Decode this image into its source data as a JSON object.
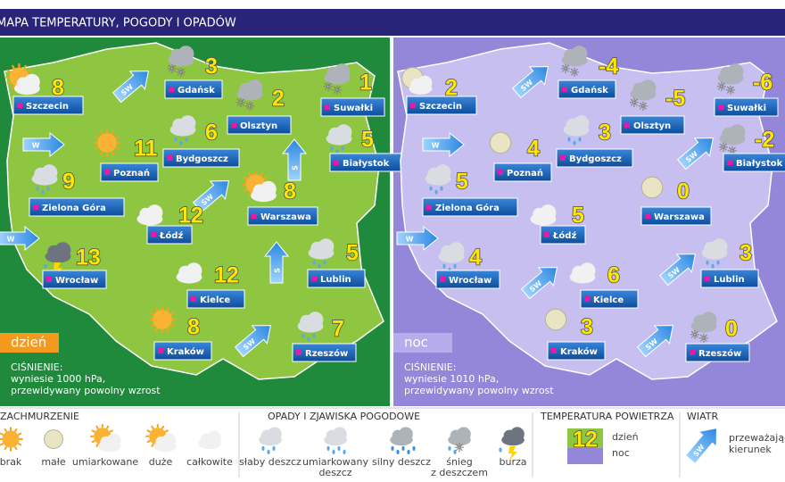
{
  "header": {
    "title": "MAPA TEMPERATURY, POGODY I OPADÓW"
  },
  "panels": [
    {
      "label": "dzień",
      "pressure": [
        "CIŚNIENIE:",
        "wyniesie 1000 hPa,",
        "przewidywany powolny wzrost"
      ],
      "cities": [
        {
          "name": "Szczecin",
          "temp": 8
        },
        {
          "name": "Gdańsk",
          "temp": 3
        },
        {
          "name": "Olsztyn",
          "temp": 2
        },
        {
          "name": "Suwałki",
          "temp": 1
        },
        {
          "name": "Białystok",
          "temp": 5
        },
        {
          "name": "Bydgoszcz",
          "temp": 6
        },
        {
          "name": "Poznań",
          "temp": 11
        },
        {
          "name": "Zielona Góra",
          "temp": 9
        },
        {
          "name": "Warszawa",
          "temp": 8
        },
        {
          "name": "Łódź",
          "temp": 12
        },
        {
          "name": "Wrocław",
          "temp": 13
        },
        {
          "name": "Kielce",
          "temp": 12
        },
        {
          "name": "Lublin",
          "temp": 5
        },
        {
          "name": "Kraków",
          "temp": 8
        },
        {
          "name": "Rzeszów",
          "temp": 7
        }
      ],
      "winds": [
        "SW",
        "W",
        "SW",
        "W",
        "S",
        "S",
        "SW"
      ]
    },
    {
      "label": "noc",
      "pressure": [
        "CIŚNIENIE:",
        "wyniesie 1010 hPa,",
        "przewidywany powolny wzrost"
      ],
      "cities": [
        {
          "name": "Szczecin",
          "temp": 2
        },
        {
          "name": "Gdańsk",
          "temp": -4
        },
        {
          "name": "Olsztyn",
          "temp": -5
        },
        {
          "name": "Suwałki",
          "temp": -6
        },
        {
          "name": "Białystok",
          "temp": -2
        },
        {
          "name": "Bydgoszcz",
          "temp": 3
        },
        {
          "name": "Poznań",
          "temp": 4
        },
        {
          "name": "Zielona Góra",
          "temp": 5
        },
        {
          "name": "Warszawa",
          "temp": 0
        },
        {
          "name": "Łódź",
          "temp": 5
        },
        {
          "name": "Wrocław",
          "temp": 4
        },
        {
          "name": "Kielce",
          "temp": 6
        },
        {
          "name": "Lublin",
          "temp": 3
        },
        {
          "name": "Kraków",
          "temp": 3
        },
        {
          "name": "Rzeszów",
          "temp": 0
        }
      ],
      "winds": [
        "SW",
        "W",
        "SW",
        "W",
        "SW",
        "SW",
        "SW"
      ]
    }
  ],
  "legend": {
    "cloud": {
      "title": "ZACHMURZENIE",
      "items": [
        "brak",
        "małe",
        "umiarkowane",
        "duże",
        "całkowite"
      ]
    },
    "precip": {
      "title": "OPADY I ZJAWISKA POGODOWE",
      "items": [
        [
          "słaby deszcz"
        ],
        [
          "umiarkowany",
          "deszcz"
        ],
        [
          "silny deszcz"
        ],
        [
          "śnieg",
          "z deszczem"
        ],
        [
          "burza"
        ]
      ]
    },
    "temperature": {
      "title": "TEMPERATURA POWIETRZA",
      "sample": 12,
      "day": "dzień",
      "night": "noc"
    },
    "wind": {
      "title": "WIATR",
      "sample": "SW",
      "text": [
        "przeważający",
        "kierunek"
      ]
    }
  }
}
